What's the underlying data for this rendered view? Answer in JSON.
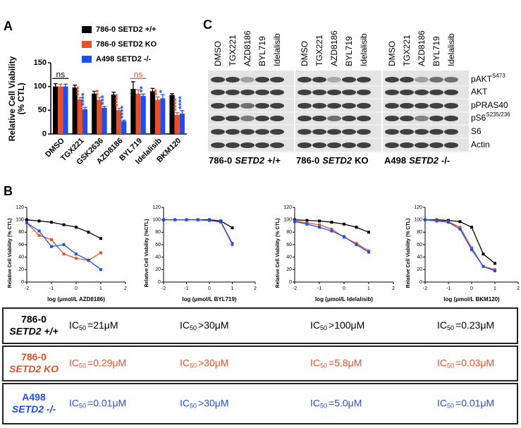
{
  "panel_labels": [
    "A",
    "B",
    "C"
  ],
  "chart_data": [
    {
      "type": "bar",
      "ylabel": [
        "Relative Cell Viability",
        "(% CTL)"
      ],
      "categories": [
        "DMSO",
        "TGX221",
        "GSK2636",
        "AZD8186",
        "BYL719",
        "Idelalisib",
        "BKM120"
      ],
      "ylim": [
        0,
        150
      ],
      "yticks": [
        0,
        50,
        100,
        150
      ],
      "series": [
        {
          "name": "786-0 SETD2 +/+",
          "color": "#000000",
          "values": [
            100,
            98,
            85,
            83,
            95,
            90,
            82
          ],
          "errors": [
            6,
            5,
            5,
            5,
            15,
            6,
            3
          ],
          "significance": [
            null,
            null,
            null,
            null,
            null,
            null,
            null
          ]
        },
        {
          "name": "786-0 SETD2 KO",
          "color": "#e8502a",
          "values": [
            100,
            73,
            72,
            50,
            85,
            72,
            40
          ],
          "errors": [
            5,
            4,
            5,
            4,
            8,
            6,
            5
          ],
          "significance": [
            null,
            "***",
            "**",
            "****",
            null,
            "**",
            "****"
          ]
        },
        {
          "name": "A498 SETD2 -/-",
          "color": "#1f4ef0",
          "values": [
            100,
            52,
            55,
            27,
            80,
            75,
            43
          ],
          "errors": [
            5,
            4,
            3,
            2,
            4,
            8,
            6
          ],
          "significance": [
            null,
            "****",
            "***",
            "****",
            "**",
            "*",
            "****"
          ]
        }
      ],
      "annotations": [
        "ns",
        "ns"
      ],
      "annotation_colors": [
        "#000000",
        "#e8502a"
      ]
    },
    {
      "type": "line",
      "xlabel": "log (μmol/L AZD8186)",
      "ylabel": "Relative Cell Viability (% CTL)",
      "x": [
        -2,
        -1.5,
        -1,
        -0.5,
        0,
        0.5,
        1
      ],
      "xlim": [
        -2,
        2
      ],
      "xticks": [
        -2,
        -1,
        0,
        1,
        2
      ],
      "ylim": [
        0,
        120
      ],
      "yticks": [
        0,
        20,
        40,
        60,
        80,
        100,
        120
      ],
      "series": [
        {
          "color": "#000000",
          "values": [
            100,
            98,
            96,
            92,
            88,
            80,
            70
          ]
        },
        {
          "color": "#e8502a",
          "values": [
            95,
            75,
            68,
            45,
            38,
            35,
            47
          ]
        },
        {
          "color": "#1f4ef0",
          "values": [
            95,
            82,
            57,
            60,
            45,
            35,
            20
          ]
        }
      ]
    },
    {
      "type": "line",
      "xlabel": "log (μmol/L BYL719)",
      "ylabel": "Relative Cell Viability (%CTL)",
      "x": [
        -2,
        -1.5,
        -1,
        -0.5,
        0,
        0.5,
        1
      ],
      "xlim": [
        -2,
        2
      ],
      "xticks": [
        -2,
        -1,
        0,
        1,
        2
      ],
      "ylim": [
        0,
        120
      ],
      "yticks": [
        0,
        20,
        40,
        60,
        80,
        100,
        120
      ],
      "series": [
        {
          "color": "#000000",
          "values": [
            100,
            100,
            100,
            100,
            100,
            98,
            87
          ]
        },
        {
          "color": "#e8502a",
          "values": [
            100,
            100,
            100,
            100,
            99,
            96,
            60
          ]
        },
        {
          "color": "#1f4ef0",
          "values": [
            100,
            100,
            100,
            100,
            99,
            97,
            62
          ]
        }
      ]
    },
    {
      "type": "line",
      "xlabel": "log (μmol/L Idelalisib)",
      "ylabel": "Relative Cell Viability (% CTL)",
      "x": [
        -2,
        -1.5,
        -1,
        -0.5,
        0,
        0.5,
        1
      ],
      "xlim": [
        -2,
        2
      ],
      "xticks": [
        -2,
        -1,
        0,
        1,
        2
      ],
      "ylim": [
        0,
        120
      ],
      "yticks": [
        0,
        20,
        40,
        60,
        80,
        100,
        120
      ],
      "series": [
        {
          "color": "#000000",
          "values": [
            100,
            99,
            98,
            96,
            93,
            88,
            80
          ]
        },
        {
          "color": "#e8502a",
          "values": [
            98,
            95,
            92,
            85,
            72,
            62,
            50
          ]
        },
        {
          "color": "#1f4ef0",
          "values": [
            97,
            93,
            88,
            82,
            73,
            60,
            48
          ]
        }
      ]
    },
    {
      "type": "line",
      "xlabel": "log (μmol/L BKM120)",
      "ylabel": "Relative Cell Viability (% CTL)",
      "x": [
        -2,
        -1.5,
        -1,
        -0.5,
        0,
        0.5,
        1
      ],
      "xlim": [
        -2,
        2
      ],
      "xticks": [
        -2,
        -1,
        0,
        1,
        2
      ],
      "ylim": [
        0,
        120
      ],
      "yticks": [
        0,
        20,
        40,
        60,
        80,
        100,
        120
      ],
      "series": [
        {
          "color": "#000000",
          "values": [
            100,
            100,
            99,
            97,
            88,
            45,
            30
          ]
        },
        {
          "color": "#e8502a",
          "values": [
            100,
            99,
            97,
            88,
            55,
            25,
            20
          ]
        },
        {
          "color": "#1f4ef0",
          "values": [
            100,
            98,
            96,
            85,
            52,
            25,
            18
          ]
        }
      ]
    }
  ],
  "blot": {
    "columns": [
      "DMSO",
      "TGX221",
      "AZD8186",
      "BYL719",
      "Idelalisib",
      "DMSO",
      "TGX221",
      "AZD8186",
      "BYL719",
      "Idelalisib",
      "DMSO",
      "TGX221",
      "AZD8186",
      "BYL719",
      "Idelalisib"
    ],
    "rows": [
      {
        "text": "pAKT",
        "sup": "S473"
      },
      {
        "text": "AKT"
      },
      {
        "text": "pPRAS40"
      },
      {
        "text": "pS6",
        "sup": "S235/236"
      },
      {
        "text": "S6"
      },
      {
        "text": "Actin"
      }
    ],
    "groups": [
      {
        "cell": "786-0",
        "gene": "SETD2",
        "genotype": "+/+"
      },
      {
        "cell": "786-0",
        "gene": "SETD2",
        "genotype": "KO"
      },
      {
        "cell": "A498",
        "gene": "SETD2",
        "genotype": "-/-"
      }
    ]
  },
  "ic50_table": {
    "rows": [
      {
        "label": [
          "786-0",
          "SETD2 +/+"
        ],
        "color": "#000000",
        "cells": [
          [
            "IC",
            "50",
            "=21μM"
          ],
          [
            "IC",
            "50",
            ">30μM"
          ],
          [
            "IC",
            "50",
            ">100μM"
          ],
          [
            "IC",
            "50",
            "=0.23μM"
          ]
        ]
      },
      {
        "label": [
          "786-0",
          "SETD2 KO"
        ],
        "color": "#e8502a",
        "cells": [
          [
            "IC",
            "50",
            "=0.29μM"
          ],
          [
            "IC",
            "50",
            ">30μM"
          ],
          [
            "IC",
            "50",
            "=5.8μM"
          ],
          [
            "IC",
            "50",
            "=0.03μM"
          ]
        ]
      },
      {
        "label": [
          "A498",
          "SETD2 -/-"
        ],
        "color": "#1f4ef0",
        "cells": [
          [
            "IC",
            "50",
            "=0.01μM"
          ],
          [
            "IC",
            "50",
            ">30μM"
          ],
          [
            "IC",
            "50",
            "=5.0μM"
          ],
          [
            "IC",
            "50",
            "=0.01μM"
          ]
        ]
      }
    ]
  }
}
